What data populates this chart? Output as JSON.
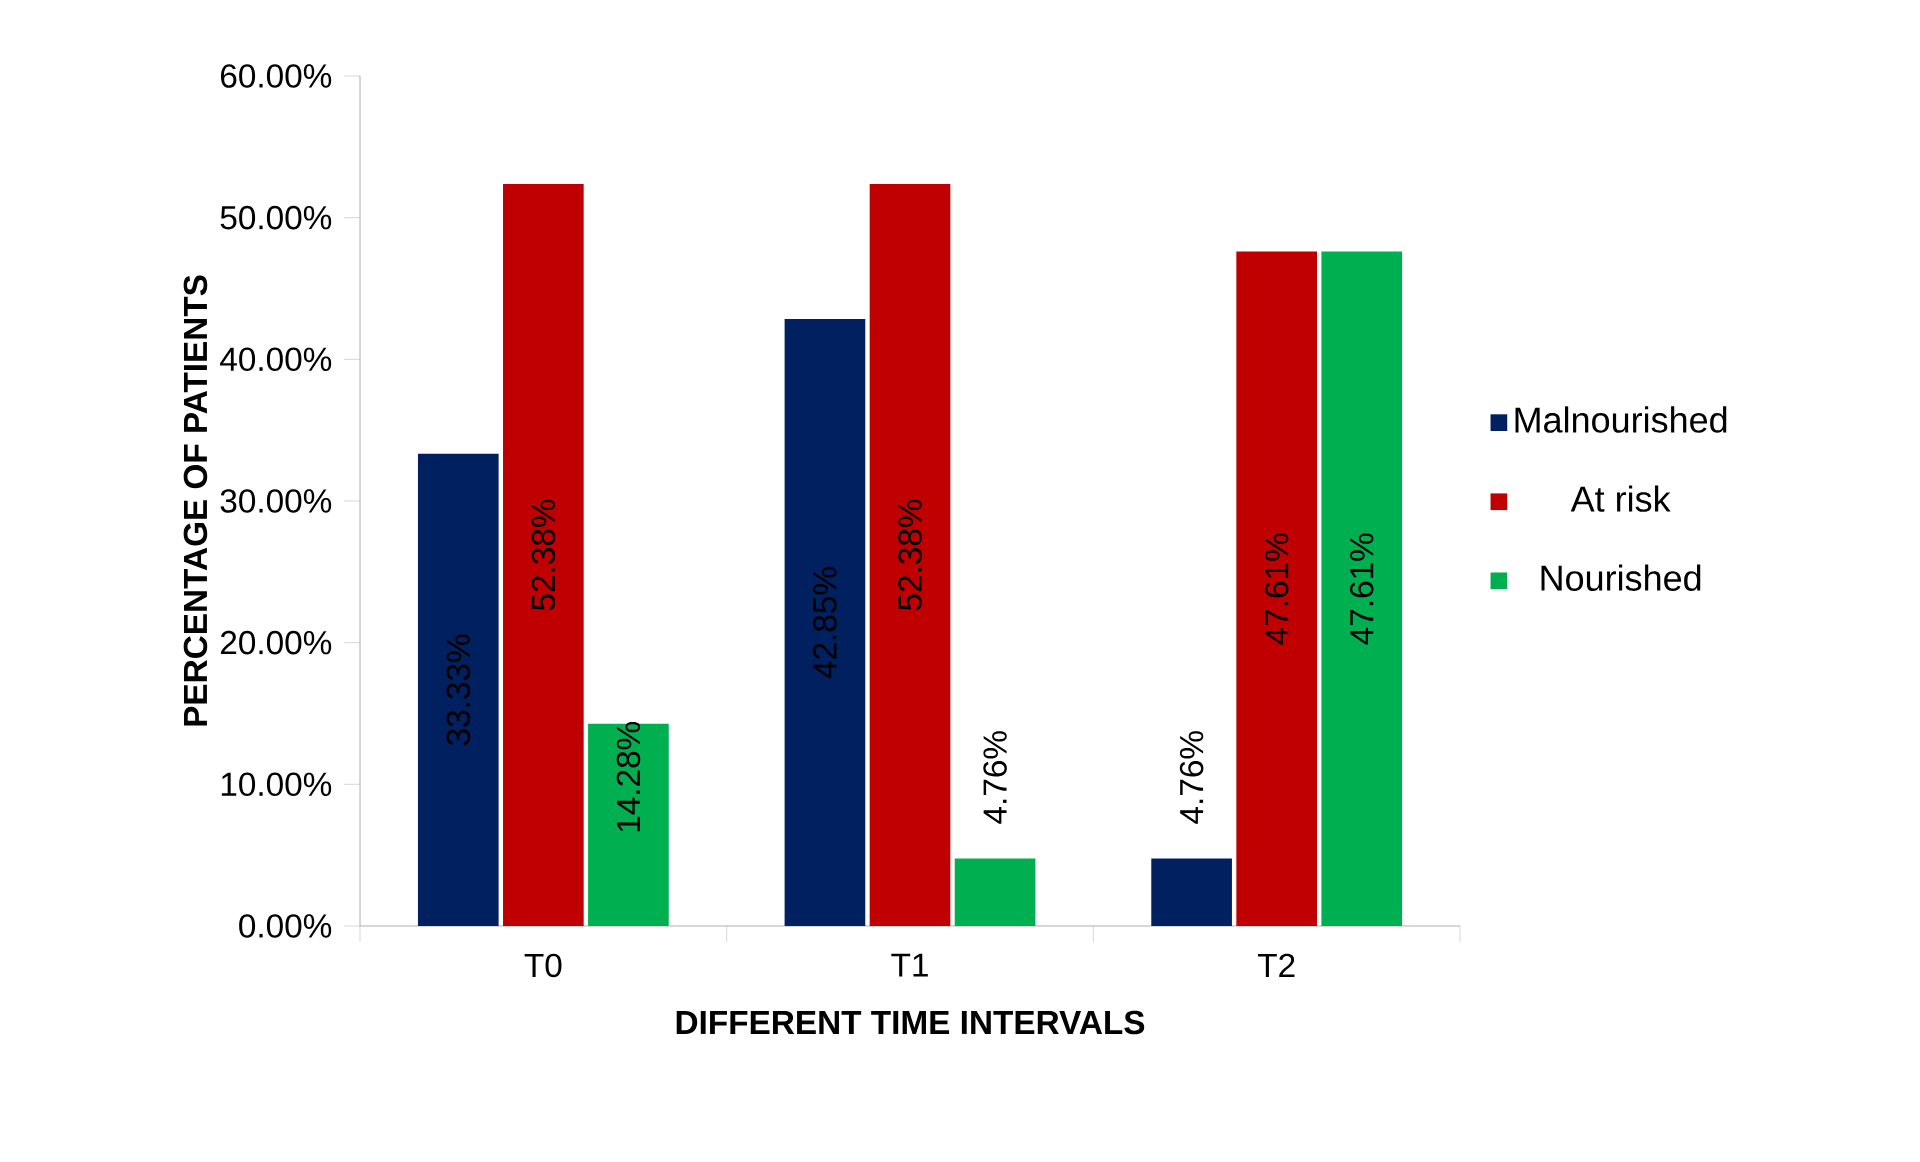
{
  "chart_data": {
    "type": "bar",
    "xlabel": "DIFFERENT TIME INTERVALS",
    "ylabel": "PERCENTAGE OF PATIENTS",
    "categories": [
      "T0",
      "T1",
      "T2"
    ],
    "series": [
      {
        "name": "Malnourished",
        "color": "#002060",
        "values": [
          33.33,
          42.85,
          4.76
        ],
        "value_labels": [
          "33.33%",
          "42.85%",
          "4.76%"
        ]
      },
      {
        "name": "At risk",
        "color": "#c00000",
        "values": [
          52.38,
          52.38,
          47.61
        ],
        "value_labels": [
          "52.38%",
          "52.38%",
          "47.61%"
        ]
      },
      {
        "name": "Nourished",
        "color": "#00b050",
        "values": [
          14.28,
          4.76,
          47.61
        ],
        "value_labels": [
          "14.28%",
          "4.76%",
          "47.61%"
        ]
      }
    ],
    "ylim": [
      0,
      60
    ],
    "yticks": [
      {
        "value": 0,
        "label": "0.00%"
      },
      {
        "value": 10,
        "label": "10.00%"
      },
      {
        "value": 20,
        "label": "20.00%"
      },
      {
        "value": 30,
        "label": "30.00%"
      },
      {
        "value": 40,
        "label": "40.00%"
      },
      {
        "value": 50,
        "label": "50.00%"
      },
      {
        "value": 60,
        "label": "60.00%"
      }
    ],
    "grid": false,
    "legend": "right"
  }
}
